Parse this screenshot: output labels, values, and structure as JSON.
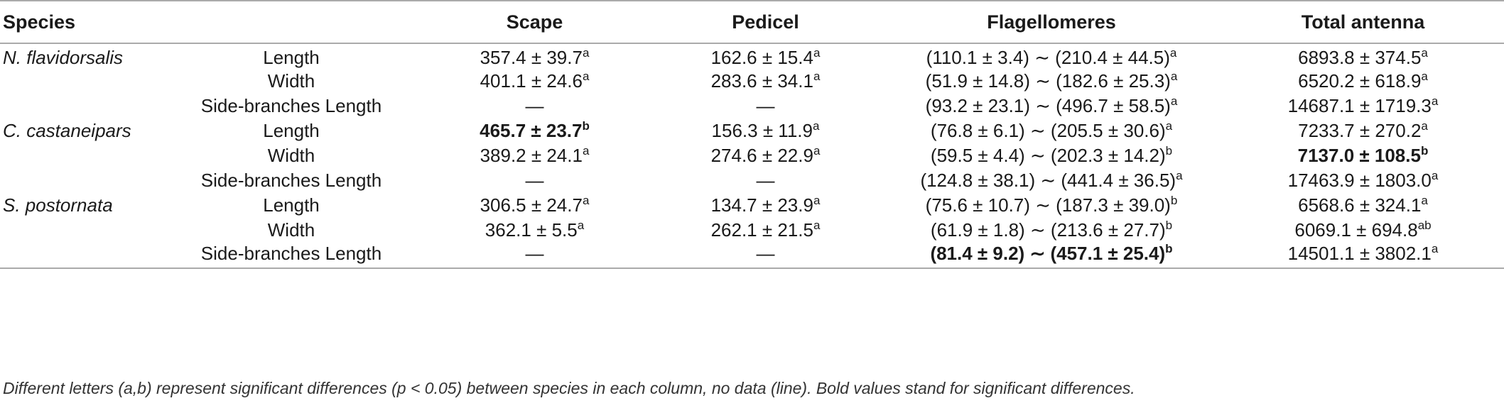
{
  "headers": {
    "species": "Species",
    "measure": "",
    "scape": "Scape",
    "pedicel": "Pedicel",
    "flagellomeres": "Flagellomeres",
    "total": "Total antenna"
  },
  "rows": [
    {
      "species": "N. flavidorsalis",
      "measure": "Length",
      "scape": {
        "v": "357.4 ± 39.7",
        "s": "a",
        "bold": false
      },
      "pedicel": {
        "v": "162.6 ± 15.4",
        "s": "a",
        "bold": false
      },
      "flag": {
        "v": "(110.1 ± 3.4) ∼ (210.4 ± 44.5)",
        "s": "a",
        "bold": false
      },
      "total": {
        "v": "6893.8 ± 374.5",
        "s": "a",
        "bold": false
      }
    },
    {
      "species": "",
      "measure": "Width",
      "scape": {
        "v": "401.1 ± 24.6",
        "s": "a",
        "bold": false
      },
      "pedicel": {
        "v": "283.6 ± 34.1",
        "s": "a",
        "bold": false
      },
      "flag": {
        "v": "(51.9 ± 14.8) ∼ (182.6 ± 25.3)",
        "s": "a",
        "bold": false
      },
      "total": {
        "v": "6520.2 ± 618.9",
        "s": "a",
        "bold": false
      }
    },
    {
      "species": "",
      "measure": "Side-branches Length",
      "scape": {
        "v": "—",
        "s": "",
        "bold": false
      },
      "pedicel": {
        "v": "—",
        "s": "",
        "bold": false
      },
      "flag": {
        "v": "(93.2 ± 23.1) ∼ (496.7 ± 58.5)",
        "s": "a",
        "bold": false
      },
      "total": {
        "v": "14687.1 ± 1719.3",
        "s": "a",
        "bold": false
      }
    },
    {
      "species": "C. castaneipars",
      "measure": "Length",
      "scape": {
        "v": "465.7 ± 23.7",
        "s": "b",
        "bold": true
      },
      "pedicel": {
        "v": "156.3 ± 11.9",
        "s": "a",
        "bold": false
      },
      "flag": {
        "v": "(76.8 ± 6.1) ∼ (205.5 ± 30.6)",
        "s": "a",
        "bold": false
      },
      "total": {
        "v": "7233.7 ± 270.2",
        "s": "a",
        "bold": false
      }
    },
    {
      "species": "",
      "measure": "Width",
      "scape": {
        "v": "389.2 ± 24.1",
        "s": "a",
        "bold": false
      },
      "pedicel": {
        "v": "274.6 ± 22.9",
        "s": "a",
        "bold": false
      },
      "flag": {
        "v": "(59.5 ± 4.4) ∼ (202.3 ± 14.2)",
        "s": "b",
        "bold": false
      },
      "total": {
        "v": "7137.0 ± 108.5",
        "s": "b",
        "bold": true
      }
    },
    {
      "species": "",
      "measure": "Side-branches Length",
      "scape": {
        "v": "—",
        "s": "",
        "bold": false
      },
      "pedicel": {
        "v": "—",
        "s": "",
        "bold": false
      },
      "flag": {
        "v": "(124.8 ± 38.1) ∼ (441.4 ± 36.5)",
        "s": "a",
        "bold": false
      },
      "total": {
        "v": "17463.9 ± 1803.0",
        "s": "a",
        "bold": false
      }
    },
    {
      "species": "S. postornata",
      "measure": "Length",
      "scape": {
        "v": "306.5 ± 24.7",
        "s": "a",
        "bold": false
      },
      "pedicel": {
        "v": "134.7 ± 23.9",
        "s": "a",
        "bold": false
      },
      "flag": {
        "v": "(75.6 ± 10.7) ∼ (187.3 ± 39.0)",
        "s": "b",
        "bold": false
      },
      "total": {
        "v": "6568.6 ± 324.1",
        "s": "a",
        "bold": false
      }
    },
    {
      "species": "",
      "measure": "Width",
      "scape": {
        "v": "362.1 ± 5.5",
        "s": "a",
        "bold": false
      },
      "pedicel": {
        "v": "262.1 ± 21.5",
        "s": "a",
        "bold": false
      },
      "flag": {
        "v": "(61.9 ± 1.8) ∼ (213.6 ± 27.7)",
        "s": "b",
        "bold": false
      },
      "total": {
        "v": "6069.1 ± 694.8",
        "s": "ab",
        "bold": false
      }
    },
    {
      "species": "",
      "measure": "Side-branches Length",
      "scape": {
        "v": "—",
        "s": "",
        "bold": false
      },
      "pedicel": {
        "v": "—",
        "s": "",
        "bold": false
      },
      "flag": {
        "v": "(81.4 ± 9.2) ∼ (457.1 ± 25.4)",
        "s": "b",
        "bold": true
      },
      "total": {
        "v": "14501.1 ± 3802.1",
        "s": "a",
        "bold": false
      }
    }
  ],
  "footnote": "Different letters (a,b) represent significant differences (p < 0.05) between species in each column, no data (line). Bold values stand for significant differences."
}
